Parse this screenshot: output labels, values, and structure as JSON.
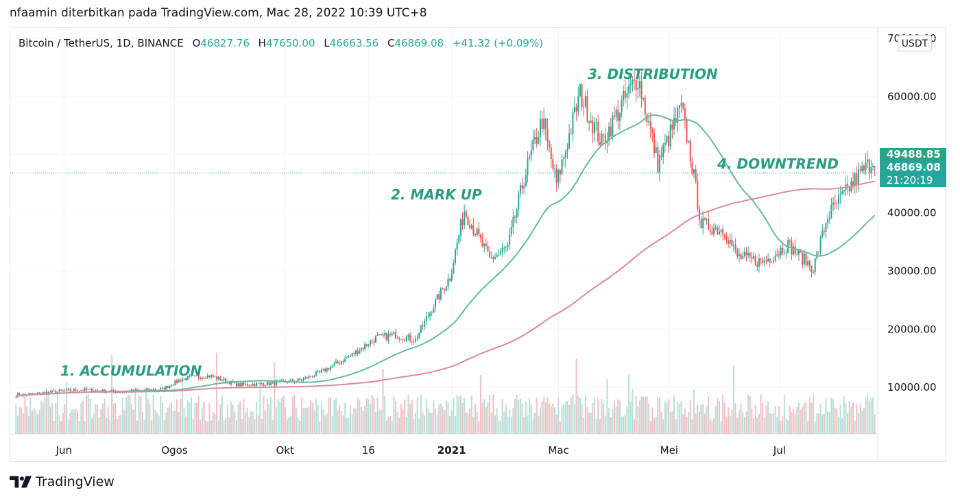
{
  "published_by": "nfaamin diterbitkan pada TradingView.com, Mac 28, 2022 10:39 UTC+8",
  "legend": {
    "symbol": "Bitcoin / TetherUS, 1D, BINANCE",
    "o_label": "O",
    "o_value": "46827.76",
    "h_label": "H",
    "h_value": "47650.00",
    "l_label": "L",
    "l_value": "46663.56",
    "c_label": "C",
    "c_value": "46869.08",
    "change": "+41.32 (+0.09%)"
  },
  "currency_button": "USDT",
  "price_tags": {
    "last_price": "49488.85",
    "current_price": "46869.08",
    "countdown": "21:20:19"
  },
  "brand": {
    "name": "TradingView",
    "logo_icon": "tradingview-logo-icon"
  },
  "colors": {
    "up": "#26a69a",
    "down": "#ef5350",
    "ma_fast": "#66bb9e",
    "ma_slow": "#e0899a",
    "annotation": "#2a9d80"
  },
  "chart_data": {
    "type": "candlestick",
    "y_axis": {
      "ticks": [
        10000,
        20000,
        30000,
        40000,
        50000,
        60000,
        70000
      ],
      "labels": [
        "10000.00",
        "20000.00",
        "30000.00",
        "40000.00",
        "",
        "60000.00",
        "70000.00"
      ],
      "ylim": [
        0,
        70000
      ]
    },
    "x_axis": {
      "ticks": [
        "Jun",
        "Ogos",
        "Okt",
        "16",
        "2021",
        "Mac",
        "Mei",
        "Jul"
      ]
    },
    "annotations": [
      {
        "text": "1. ACCUMULATION",
        "x": "2020-08",
        "y": 11500
      },
      {
        "text": "2. MARK UP",
        "x": "2020-12-25",
        "y": 44000
      },
      {
        "text": "3. DISTRIBUTION",
        "x": "2021-04",
        "y": 65000
      },
      {
        "text": "4. DOWNTREND",
        "x": "2021-06",
        "y": 51000
      }
    ],
    "price_line": 46869.08,
    "anchors": [
      [
        "2020-05-10",
        8700
      ],
      [
        "2020-05-25",
        9200
      ],
      [
        "2020-06-10",
        9600
      ],
      [
        "2020-07-01",
        9200
      ],
      [
        "2020-07-25",
        9700
      ],
      [
        "2020-08-05",
        11500
      ],
      [
        "2020-08-20",
        12000
      ],
      [
        "2020-09-05",
        10400
      ],
      [
        "2020-09-25",
        10700
      ],
      [
        "2020-10-10",
        11300
      ],
      [
        "2020-10-20",
        12500
      ],
      [
        "2020-11-05",
        15200
      ],
      [
        "2020-11-20",
        18500
      ],
      [
        "2020-12-01",
        19000
      ],
      [
        "2020-12-12",
        18200
      ],
      [
        "2020-12-20",
        23000
      ],
      [
        "2020-12-31",
        29000
      ],
      [
        "2021-01-08",
        40500
      ],
      [
        "2021-01-22",
        32000
      ],
      [
        "2021-02-01",
        34000
      ],
      [
        "2021-02-10",
        46000
      ],
      [
        "2021-02-20",
        56000
      ],
      [
        "2021-02-28",
        45000
      ],
      [
        "2021-03-13",
        60500
      ],
      [
        "2021-03-25",
        52000
      ],
      [
        "2021-04-05",
        58500
      ],
      [
        "2021-04-14",
        63500
      ],
      [
        "2021-04-25",
        48500
      ],
      [
        "2021-05-08",
        58000
      ],
      [
        "2021-05-13",
        50000
      ],
      [
        "2021-05-19",
        38000
      ],
      [
        "2021-06-01",
        37000
      ],
      [
        "2021-06-08",
        32500
      ],
      [
        "2021-06-22",
        31500
      ],
      [
        "2021-07-06",
        34500
      ],
      [
        "2021-07-20",
        30500
      ],
      [
        "2021-07-28",
        39500
      ],
      [
        "2021-08-13",
        46000
      ],
      [
        "2021-08-23",
        49488
      ]
    ],
    "volume_max": 20000
  }
}
